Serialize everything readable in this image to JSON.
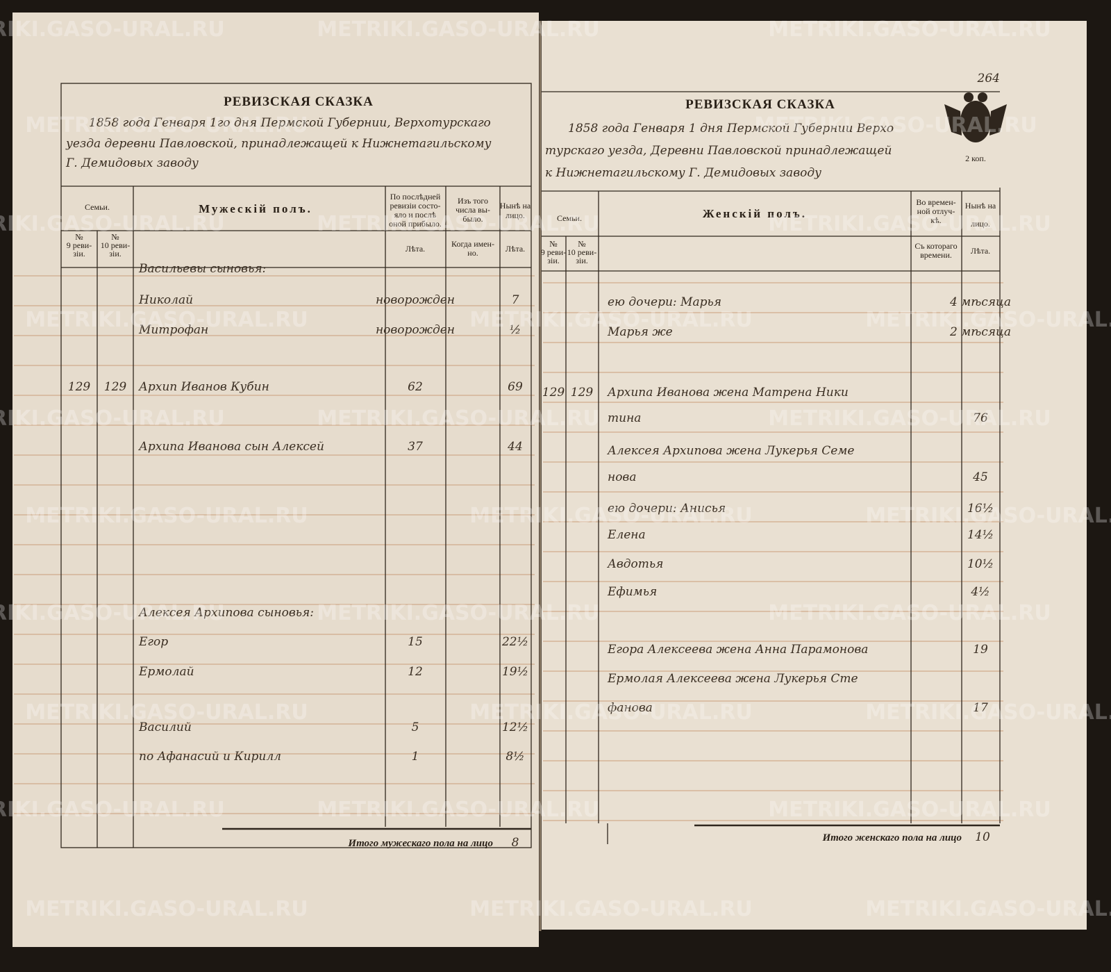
{
  "watermark": "METRIKI.GASO-URAL.RU",
  "left_page": {
    "title": "РЕВИЗСКАЯ СКАЗКА",
    "header_lines": [
      "1858 года Генваря 1го дня Пермской Губернии, Верхотурскаго",
      "уезда деревни Павловской, принадлежащей к Нижнетагильскому",
      "Г. Демидовых заводу"
    ],
    "columns": {
      "families": "Семьи.",
      "rev9": [
        "№",
        "9 реви-",
        "зіи."
      ],
      "rev10": [
        "№",
        "10 реви-",
        "зіи."
      ],
      "sex": "Мужескій полъ.",
      "last_revision": [
        "По послѣдней",
        "ревизіи состо-",
        "яло и послѣ",
        "оной прибыло."
      ],
      "last_sub": "Лѣта.",
      "left": [
        "Изъ того",
        "числа вы-",
        "было."
      ],
      "left_sub": [
        "Когда имен-",
        "но."
      ],
      "now": [
        "Нынѣ на",
        "лицо."
      ],
      "now_sub": "Лѣта."
    },
    "rows": [
      {
        "name": "Васильевы сыновья:"
      },
      {
        "name": "Николай",
        "last": "новорожден",
        "now": "7"
      },
      {
        "name": "Митрофан",
        "last": "новорожден",
        "now": "½"
      },
      {
        "n9": "129",
        "n10": "129",
        "name": "Архип Иванов Кубин",
        "last": "62",
        "now": "69"
      },
      {
        "name": "Архипа Иванова сын Алексей",
        "last": "37",
        "now": "44"
      },
      {
        "name": "Алексея Архипова сыновья:"
      },
      {
        "name": "Егор",
        "last": "15",
        "now": "22½"
      },
      {
        "name": "Ермолай",
        "last": "12",
        "now": "19½"
      },
      {
        "name": "Василий",
        "last": "5",
        "now": "12½"
      },
      {
        "name": "по Афанасий и Кирилл",
        "last": "1",
        "now": "8½"
      }
    ],
    "total_label": "Итого мужескаго пола на лицо",
    "total": "8"
  },
  "right_page": {
    "page_number": "264",
    "stamp": "2 коп.",
    "title": "РЕВИЗСКАЯ СКАЗКА",
    "header_lines": [
      "1858 года Генваря 1 дня Пермской Губернии Верхо",
      "турскаго уезда, Деревни Павловской принадлежащей",
      "к Нижнетагильскому Г. Демидовых заводу"
    ],
    "columns": {
      "families": "Семьи.",
      "rev9": [
        "№",
        "9 реви-",
        "зіи."
      ],
      "rev10": [
        "№",
        "10 реви-",
        "зіи."
      ],
      "sex": "Женскій полъ.",
      "absent": [
        "Во времен-",
        "ной отлуч-",
        "кѣ."
      ],
      "absent_sub": [
        "Съ котораго",
        "времени."
      ],
      "now": [
        "Нынѣ на",
        "лицо."
      ],
      "now_sub": "Лѣта."
    },
    "rows": [
      {
        "name": "ею дочери: Марья",
        "now": "4 мѣсяца"
      },
      {
        "name": "Марья же",
        "now": "2 мѣсяца"
      },
      {
        "n9": "129",
        "n10": "129",
        "name": "Архипа Иванова жена Матрена Ники"
      },
      {
        "name": "тина",
        "now": "76"
      },
      {
        "name": "Алексея Архипова жена Лукерья Семе"
      },
      {
        "name": "нова",
        "now": "45"
      },
      {
        "name": "ею дочери: Анисья",
        "now": "16½"
      },
      {
        "name": "Елена",
        "now": "14½"
      },
      {
        "name": "Авдотья",
        "now": "10½"
      },
      {
        "name": "Ефимья",
        "now": "4½"
      },
      {
        "name": "Егора Алексеева жена Анна Парамонова",
        "now": "19"
      },
      {
        "name": "Ермолая Алексеева жена Лукерья Сте"
      },
      {
        "name": "фанова",
        "now": "17"
      }
    ],
    "total_label": "Итого женскаго пола на лицо",
    "total": "10"
  }
}
